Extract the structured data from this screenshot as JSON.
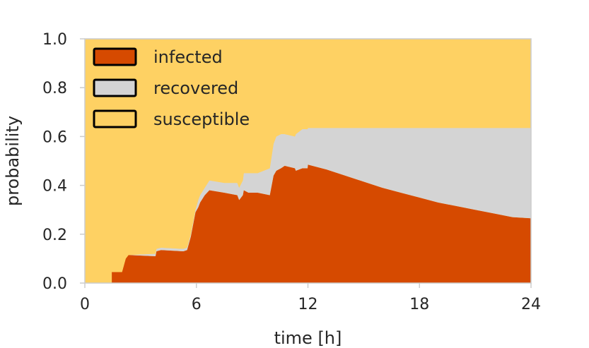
{
  "chart_data": {
    "type": "area",
    "stacked": true,
    "xlabel": "time [h]",
    "ylabel": "probability",
    "xlim": [
      0,
      24
    ],
    "ylim": [
      0,
      1.0
    ],
    "xticks": [
      "0",
      "6",
      "12",
      "18",
      "24"
    ],
    "yticks": [
      "0.0",
      "0.2",
      "0.4",
      "0.6",
      "0.8",
      "1.0"
    ],
    "grid": false,
    "legend_position": "top-left",
    "legend": [
      "infected",
      "recovered",
      "susceptible"
    ],
    "colors": {
      "infected": "#d64a00",
      "recovered": "#d4d4d4",
      "susceptible": "#fed163"
    },
    "x": [
      1.45,
      2.0,
      2.2,
      2.35,
      3.8,
      3.85,
      4.1,
      5.3,
      5.5,
      5.7,
      5.95,
      6.1,
      6.2,
      6.45,
      6.7,
      7.5,
      8.2,
      8.3,
      8.5,
      8.55,
      8.8,
      9.3,
      9.95,
      10.15,
      10.3,
      10.55,
      10.75,
      11.3,
      11.35,
      11.7,
      11.85,
      11.98,
      12.0,
      13.0,
      14.0,
      15.0,
      16.0,
      17.0,
      18.0,
      19.0,
      20.0,
      21.0,
      22.0,
      23.0,
      24.0
    ],
    "series": [
      {
        "name": "infected",
        "values": [
          0.045,
          0.045,
          0.1,
          0.115,
          0.11,
          0.13,
          0.135,
          0.13,
          0.135,
          0.19,
          0.29,
          0.31,
          0.33,
          0.36,
          0.38,
          0.37,
          0.36,
          0.34,
          0.36,
          0.38,
          0.37,
          0.37,
          0.36,
          0.44,
          0.46,
          0.47,
          0.48,
          0.47,
          0.46,
          0.47,
          0.47,
          0.47,
          0.485,
          0.465,
          0.44,
          0.415,
          0.39,
          0.37,
          0.35,
          0.33,
          0.315,
          0.3,
          0.285,
          0.27,
          0.265
        ]
      },
      {
        "name": "recovered",
        "values": [
          0.0,
          0.0,
          0.0,
          0.0,
          0.01,
          0.01,
          0.01,
          0.01,
          0.01,
          0.01,
          0.01,
          0.03,
          0.03,
          0.03,
          0.04,
          0.04,
          0.05,
          0.05,
          0.06,
          0.07,
          0.08,
          0.08,
          0.11,
          0.13,
          0.14,
          0.14,
          0.13,
          0.13,
          0.15,
          0.16,
          0.16,
          0.16,
          0.15,
          0.17,
          0.195,
          0.22,
          0.245,
          0.265,
          0.285,
          0.305,
          0.32,
          0.335,
          0.35,
          0.365,
          0.37
        ]
      },
      {
        "name": "susceptible",
        "values": [
          0.955,
          0.955,
          0.9,
          0.885,
          0.88,
          0.86,
          0.855,
          0.86,
          0.855,
          0.8,
          0.7,
          0.66,
          0.64,
          0.61,
          0.58,
          0.59,
          0.59,
          0.61,
          0.58,
          0.55,
          0.55,
          0.55,
          0.53,
          0.43,
          0.4,
          0.39,
          0.39,
          0.4,
          0.39,
          0.37,
          0.37,
          0.37,
          0.365,
          0.365,
          0.365,
          0.365,
          0.365,
          0.365,
          0.365,
          0.365,
          0.365,
          0.365,
          0.365,
          0.365,
          0.365
        ]
      }
    ]
  }
}
